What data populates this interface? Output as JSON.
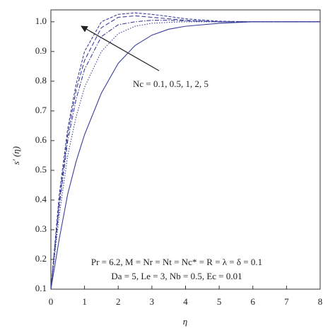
{
  "chart_data": {
    "type": "line",
    "x_label": "η",
    "y_label": "s′ (η)",
    "annotations": [
      "Nc = 0.1, 0.5, 1, 2, 5",
      "Pr = 6.2, M = Nr = Nt = Nc* = R = λ = δ = 0.1",
      "Da = 5, Le = 3, Nb = 0.5, Ec = 0.01"
    ],
    "x": [
      0,
      0.25,
      0.5,
      0.75,
      1,
      1.5,
      2,
      2.5,
      3,
      3.5,
      4,
      5,
      6,
      7,
      8
    ],
    "series": [
      {
        "color": "#3b3f9a",
        "dash": "none",
        "values": [
          0.1,
          0.27,
          0.42,
          0.53,
          0.62,
          0.76,
          0.86,
          0.92,
          0.955,
          0.975,
          0.985,
          0.995,
          1.0,
          1.0,
          1.0
        ]
      },
      {
        "color": "#3b3f9a",
        "dash": "1.5,2",
        "values": [
          0.1,
          0.35,
          0.55,
          0.68,
          0.78,
          0.9,
          0.96,
          0.985,
          0.995,
          0.998,
          1.0,
          1.0,
          1.0,
          1.0,
          1.0
        ]
      },
      {
        "color": "#3b3f9a",
        "dash": "6,2,1.5,2",
        "values": [
          0.1,
          0.38,
          0.6,
          0.74,
          0.84,
          0.95,
          0.99,
          1.0,
          1.005,
          1.005,
          1.003,
          1.0,
          1.0,
          1.0,
          1.0
        ]
      },
      {
        "color": "#3b3f9a",
        "dash": "6,3",
        "values": [
          0.1,
          0.4,
          0.62,
          0.77,
          0.87,
          0.98,
          1.015,
          1.02,
          1.015,
          1.01,
          1.005,
          1.0,
          1.0,
          1.0,
          1.0
        ]
      },
      {
        "color": "#3b3f9a",
        "dash": "4,2",
        "values": [
          0.1,
          0.42,
          0.64,
          0.79,
          0.9,
          1.0,
          1.025,
          1.03,
          1.025,
          1.018,
          1.01,
          1.002,
          1.0,
          1.0,
          1.0
        ]
      }
    ],
    "xlim": [
      0,
      8
    ],
    "ylim": [
      0.1,
      1.04
    ],
    "xticks": [
      0,
      1,
      2,
      3,
      4,
      5,
      6,
      7,
      8
    ],
    "yticks": [
      0.1,
      0.2,
      0.3,
      0.4,
      0.5,
      0.6,
      0.7,
      0.8,
      0.9,
      {
        "value": 1,
        "label": "1.0"
      }
    ]
  }
}
